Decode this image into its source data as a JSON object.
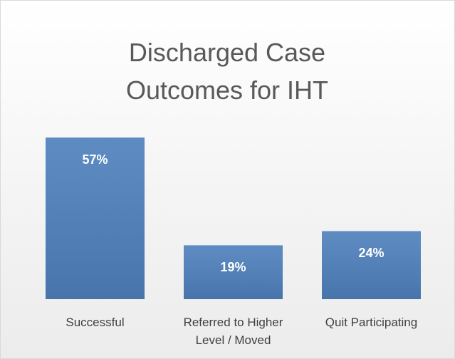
{
  "chart_data": {
    "type": "bar",
    "title": "Discharged Case Outcomes for IHT",
    "categories": [
      "Successful",
      "Referred to Higher Level / Moved",
      "Quit Participating"
    ],
    "values": [
      57,
      19,
      24
    ],
    "value_labels": [
      "57%",
      "19%",
      "24%"
    ],
    "color": "#4f81bd"
  }
}
